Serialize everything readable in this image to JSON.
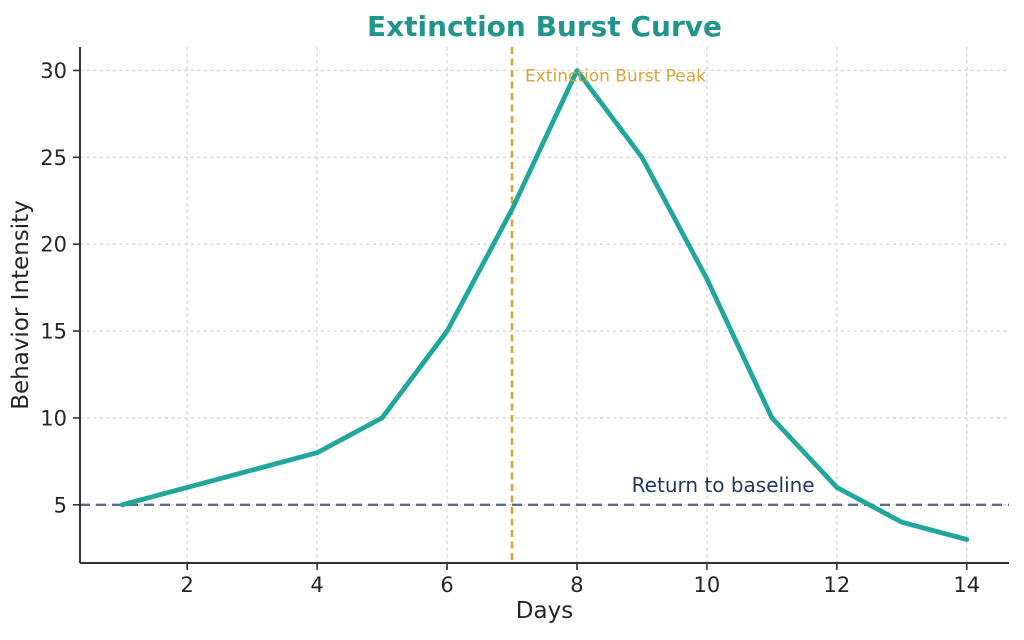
{
  "chart_data": {
    "type": "line",
    "title": "Extinction Burst Curve",
    "xlabel": "Days",
    "ylabel": "Behavior Intensity",
    "x": [
      1,
      2,
      3,
      4,
      5,
      6,
      7,
      8,
      9,
      10,
      11,
      12,
      13,
      14
    ],
    "series": [
      {
        "name": "behavior-intensity",
        "values": [
          5,
          6,
          7,
          8,
          10,
          15,
          22,
          30,
          25,
          18,
          10,
          6,
          4,
          3
        ],
        "color": "#20a79c",
        "linewidth": 4.8
      }
    ],
    "xticks": [
      2,
      4,
      6,
      8,
      10,
      12,
      14
    ],
    "yticks": [
      5,
      10,
      15,
      20,
      25,
      30
    ],
    "xlim": [
      0.35,
      14.65
    ],
    "ylim": [
      1.65,
      31.35
    ],
    "grid": true,
    "legend": false,
    "reference_lines": [
      {
        "orientation": "vertical",
        "at": 7,
        "color": "#d9a437",
        "dash": "7 4.5",
        "width": 2.6,
        "name": "extinction-peak-vline"
      },
      {
        "orientation": "horizontal",
        "at": 5,
        "color": "#5b6b8a",
        "dash": "10 6",
        "width": 2.4,
        "name": "baseline-hline"
      }
    ],
    "annotations": [
      {
        "text": "Extinction Burst Peak",
        "x": 7.2,
        "y": 29.35,
        "color": "#d9a437",
        "anchor": "start",
        "size": 17,
        "name": "peak-annotation"
      },
      {
        "text": "Return to baseline",
        "x": 10.25,
        "y": 5.75,
        "color": "#24365c",
        "anchor": "middle",
        "size": 20,
        "name": "baseline-annotation"
      }
    ],
    "colors": {
      "title": "#21958b",
      "axis": "#333333",
      "tick_label": "#262626",
      "grid": "#d9d9d9"
    }
  }
}
